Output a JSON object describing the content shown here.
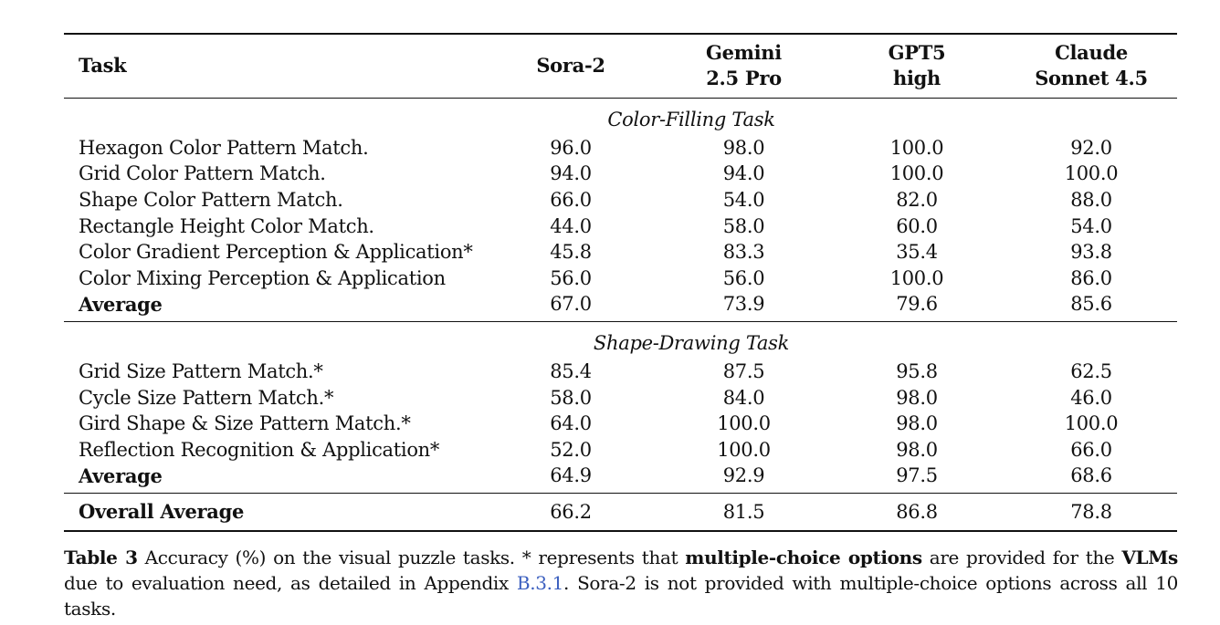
{
  "table": {
    "headers": {
      "task": "Task",
      "models": [
        {
          "line1": "Sora-2",
          "line2": ""
        },
        {
          "line1": "Gemini",
          "line2": "2.5 Pro"
        },
        {
          "line1": "GPT5",
          "line2": "high"
        },
        {
          "line1": "Claude",
          "line2": "Sonnet 4.5"
        }
      ]
    },
    "sections": [
      {
        "title": "Color-Filling Task",
        "rows": [
          {
            "task": "Hexagon Color Pattern Match.",
            "values": [
              "96.0",
              "98.0",
              "100.0",
              "92.0"
            ]
          },
          {
            "task": "Grid Color Pattern Match.",
            "values": [
              "94.0",
              "94.0",
              "100.0",
              "100.0"
            ]
          },
          {
            "task": "Shape Color Pattern Match.",
            "values": [
              "66.0",
              "54.0",
              "82.0",
              "88.0"
            ]
          },
          {
            "task": "Rectangle Height Color Match.",
            "values": [
              "44.0",
              "58.0",
              "60.0",
              "54.0"
            ]
          },
          {
            "task": "Color Gradient Perception & Application*",
            "values": [
              "45.8",
              "83.3",
              "35.4",
              "93.8"
            ]
          },
          {
            "task": "Color Mixing Perception & Application",
            "values": [
              "56.0",
              "56.0",
              "100.0",
              "86.0"
            ]
          }
        ],
        "average": {
          "label": "Average",
          "values": [
            "67.0",
            "73.9",
            "79.6",
            "85.6"
          ]
        }
      },
      {
        "title": "Shape-Drawing Task",
        "rows": [
          {
            "task": "Grid Size Pattern Match.*",
            "values": [
              "85.4",
              "87.5",
              "95.8",
              "62.5"
            ]
          },
          {
            "task": "Cycle Size Pattern Match.*",
            "values": [
              "58.0",
              "84.0",
              "98.0",
              "46.0"
            ]
          },
          {
            "task": "Gird Shape & Size Pattern Match.*",
            "values": [
              "64.0",
              "100.0",
              "98.0",
              "100.0"
            ]
          },
          {
            "task": "Reflection Recognition & Application*",
            "values": [
              "52.0",
              "100.0",
              "98.0",
              "66.0"
            ]
          }
        ],
        "average": {
          "label": "Average",
          "values": [
            "64.9",
            "92.9",
            "97.5",
            "68.6"
          ]
        }
      }
    ],
    "overall": {
      "label": "Overall Average",
      "values": [
        "66.2",
        "81.5",
        "86.8",
        "78.8"
      ]
    }
  },
  "caption": {
    "label": "Table 3",
    "text1": " Accuracy (%) on the visual puzzle tasks. * represents that ",
    "bold1": "multiple-choice options",
    "text2": " are provided for the ",
    "bold2": "VLMs",
    "text3": " due to evaluation need, as detailed in Appendix ",
    "link": "B.3.1",
    "text4": ". Sora-2 is not provided with multiple-choice options across all 10 tasks."
  },
  "colors": {
    "text": "#111111",
    "link": "#3b5fbf",
    "background": "#ffffff"
  }
}
